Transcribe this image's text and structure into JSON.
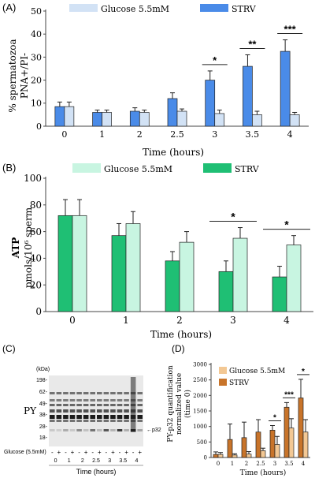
{
  "colors": {
    "strv_blue": "#4a8be8",
    "glucose_blue": "#d2e2f5",
    "strv_green": "#1fbf74",
    "glucose_green": "#c8f5e1",
    "strv_orange": "#c8742a",
    "glucose_orange": "#f3c894",
    "axis": "#444444",
    "blot_bg": "#e9e9e9"
  },
  "panel_labels": {
    "a": "(A)",
    "b": "(B)",
    "c": "(C)",
    "d": "(D)"
  },
  "chart_data": [
    {
      "type": "bar",
      "ylabel": "% spermatozoa PNA+/PI-",
      "ylabel_lines": [
        "% spermatozoa",
        "PNA+/PI-"
      ],
      "xlabel": "Time (hours)",
      "categories": [
        "0",
        "1",
        "2",
        "2.5",
        "3",
        "3.5",
        "4"
      ],
      "ylim": [
        0,
        50
      ],
      "yticks": [
        "0",
        "10",
        "20",
        "30",
        "40",
        "50"
      ],
      "legend": {
        "position": "top",
        "entries": [
          "Glucose 5.5mM",
          "STRV"
        ]
      },
      "series": [
        {
          "name": "STRV",
          "values": [
            8.5,
            6,
            6.5,
            12,
            20,
            26,
            32.5
          ],
          "errors": [
            2,
            1,
            1.5,
            2.5,
            4,
            5,
            5
          ]
        },
        {
          "name": "Glucose 5.5mM",
          "values": [
            8.5,
            6,
            6,
            6.5,
            5.5,
            5,
            5
          ],
          "errors": [
            2,
            1,
            1,
            1,
            1.5,
            1.5,
            1
          ]
        }
      ],
      "annotations": [
        {
          "category": "3",
          "text": "*"
        },
        {
          "category": "3.5",
          "text": "**"
        },
        {
          "category": "4",
          "text": "***"
        }
      ]
    },
    {
      "type": "bar",
      "ylabel": "ATP pmols/10⁶ sperm",
      "ylabel_lines": [
        "ATP",
        "pmols/10⁶ sperm"
      ],
      "xlabel": "Time (hours)",
      "categories": [
        "0",
        "1",
        "2",
        "3",
        "4"
      ],
      "ylim": [
        0,
        100
      ],
      "yticks": [
        "0",
        "20",
        "40",
        "60",
        "80",
        "100"
      ],
      "legend": {
        "position": "top",
        "entries": [
          "Glucose 5.5mM",
          "STRV"
        ]
      },
      "series": [
        {
          "name": "STRV",
          "values": [
            72,
            57,
            38,
            30,
            26
          ],
          "errors": [
            12,
            9,
            7,
            8,
            8
          ]
        },
        {
          "name": "Glucose 5.5mM",
          "values": [
            72,
            66,
            52,
            55,
            50
          ],
          "errors": [
            12,
            9,
            8,
            8,
            7
          ]
        }
      ],
      "annotations": [
        {
          "category": "3",
          "text": "*"
        },
        {
          "category": "4",
          "text": "*"
        }
      ]
    },
    {
      "type": "bar",
      "ylabel": "PY-p32 quantification normalized value (time 0)",
      "ylabel_lines": [
        "PY-p32 quantification",
        "normalized value",
        "(time 0)"
      ],
      "xlabel": "Time (hours)",
      "categories": [
        "0",
        "1",
        "2",
        "2.5",
        "3",
        "3.5",
        "4"
      ],
      "ylim": [
        0,
        3000
      ],
      "yticks": [
        "0",
        "500",
        "1000",
        "1500",
        "2000",
        "2500",
        "3000"
      ],
      "legend": {
        "position": "top-left",
        "entries": [
          "Glucose 5.5mM",
          "STRV"
        ]
      },
      "series": [
        {
          "name": "STRV",
          "values": [
            100,
            580,
            640,
            820,
            880,
            1620,
            1920
          ],
          "errors": [
            80,
            500,
            500,
            400,
            150,
            150,
            600
          ]
        },
        {
          "name": "Glucose 5.5mM",
          "values": [
            100,
            80,
            110,
            220,
            420,
            950,
            820
          ],
          "errors": [
            60,
            40,
            80,
            80,
            260,
            300,
            400
          ]
        }
      ],
      "annotations": [
        {
          "category": "3",
          "text": "*"
        },
        {
          "category": "3.5",
          "text": "***"
        },
        {
          "category": "4",
          "text": "*"
        }
      ]
    }
  ],
  "blot": {
    "y_label": "PY",
    "kda_label": "(kDa)",
    "markers": [
      "198-",
      "62-",
      "49-",
      "38-",
      "28-",
      "18-"
    ],
    "band_label": "p32",
    "glucose_label": "Glucose (5.5mM)",
    "lane_signs": [
      "-",
      "+",
      "-",
      "+",
      "-",
      "+",
      "-",
      "+",
      "-",
      "+",
      "-",
      "+",
      "-",
      "+"
    ],
    "time_labels": [
      "0",
      "1",
      "2",
      "2.5",
      "3",
      "3.5",
      "4"
    ],
    "xlabel": "Time (hours)"
  }
}
